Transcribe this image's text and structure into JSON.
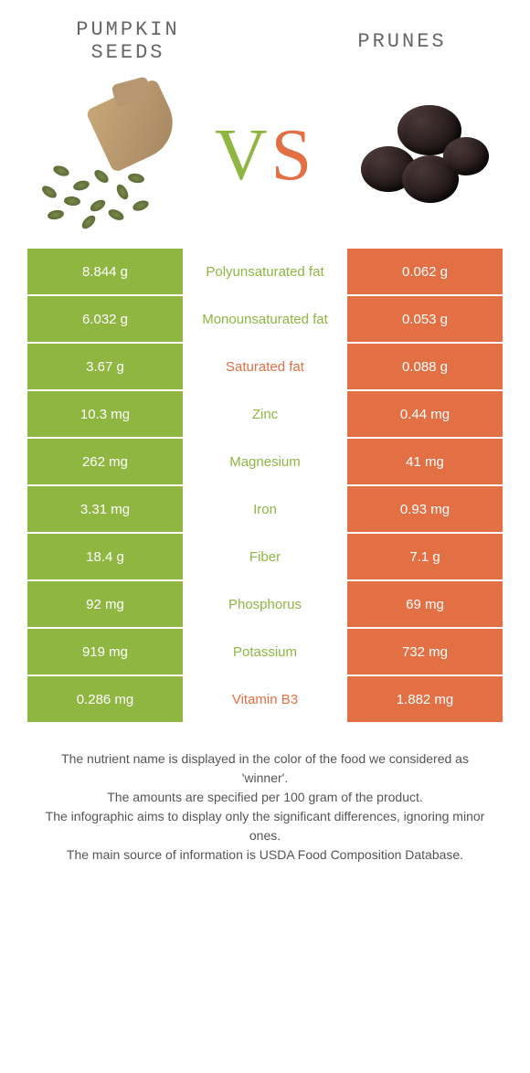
{
  "colors": {
    "green": "#8eb641",
    "orange": "#e36f44",
    "text": "#555555",
    "bg": "#ffffff"
  },
  "left_name": "PUMPKIN SEEDS",
  "right_name": "Prunes",
  "vs": {
    "v": "V",
    "s": "S"
  },
  "rows": [
    {
      "left": "8.844 g",
      "label": "Polyunsaturated fat",
      "right": "0.062 g",
      "winner": "left"
    },
    {
      "left": "6.032 g",
      "label": "Monounsaturated fat",
      "right": "0.053 g",
      "winner": "left"
    },
    {
      "left": "3.67 g",
      "label": "Saturated fat",
      "right": "0.088 g",
      "winner": "right"
    },
    {
      "left": "10.3 mg",
      "label": "Zinc",
      "right": "0.44 mg",
      "winner": "left"
    },
    {
      "left": "262 mg",
      "label": "Magnesium",
      "right": "41 mg",
      "winner": "left"
    },
    {
      "left": "3.31 mg",
      "label": "Iron",
      "right": "0.93 mg",
      "winner": "left"
    },
    {
      "left": "18.4 g",
      "label": "Fiber",
      "right": "7.1 g",
      "winner": "left"
    },
    {
      "left": "92 mg",
      "label": "Phosphorus",
      "right": "69 mg",
      "winner": "left"
    },
    {
      "left": "919 mg",
      "label": "Potassium",
      "right": "732 mg",
      "winner": "left"
    },
    {
      "left": "0.286 mg",
      "label": "Vitamin B3",
      "right": "1.882 mg",
      "winner": "right"
    }
  ],
  "footer": [
    "The nutrient name is displayed in the color of the food we considered as 'winner'.",
    "The amounts are specified per 100 gram of the product.",
    "The infographic aims to display only the significant differences, ignoring minor ones.",
    "The main source of information is USDA Food Composition Database."
  ]
}
